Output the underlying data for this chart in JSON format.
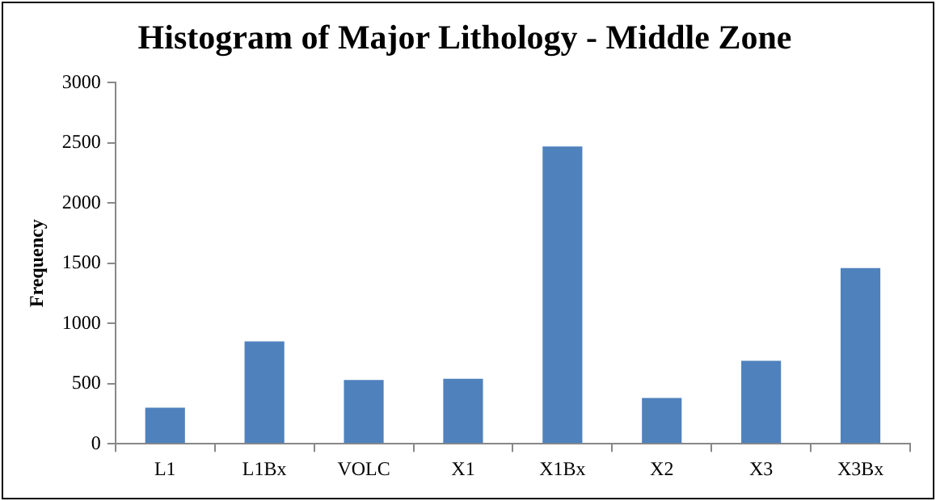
{
  "chart_data": {
    "type": "bar",
    "title": "Histogram of Major Lithology - Middle Zone",
    "ylabel": "Frequency",
    "categories": [
      "L1",
      "L1Bx",
      "VOLC",
      "X1",
      "X1Bx",
      "X2",
      "X3",
      "X3Bx"
    ],
    "values": [
      300,
      850,
      530,
      540,
      2470,
      380,
      690,
      1460
    ],
    "color": "#4f81bd",
    "ylim": [
      0,
      3000
    ],
    "yticks": [
      0,
      500,
      1000,
      1500,
      2000,
      2500,
      3000
    ],
    "grid": false,
    "legend": false
  }
}
